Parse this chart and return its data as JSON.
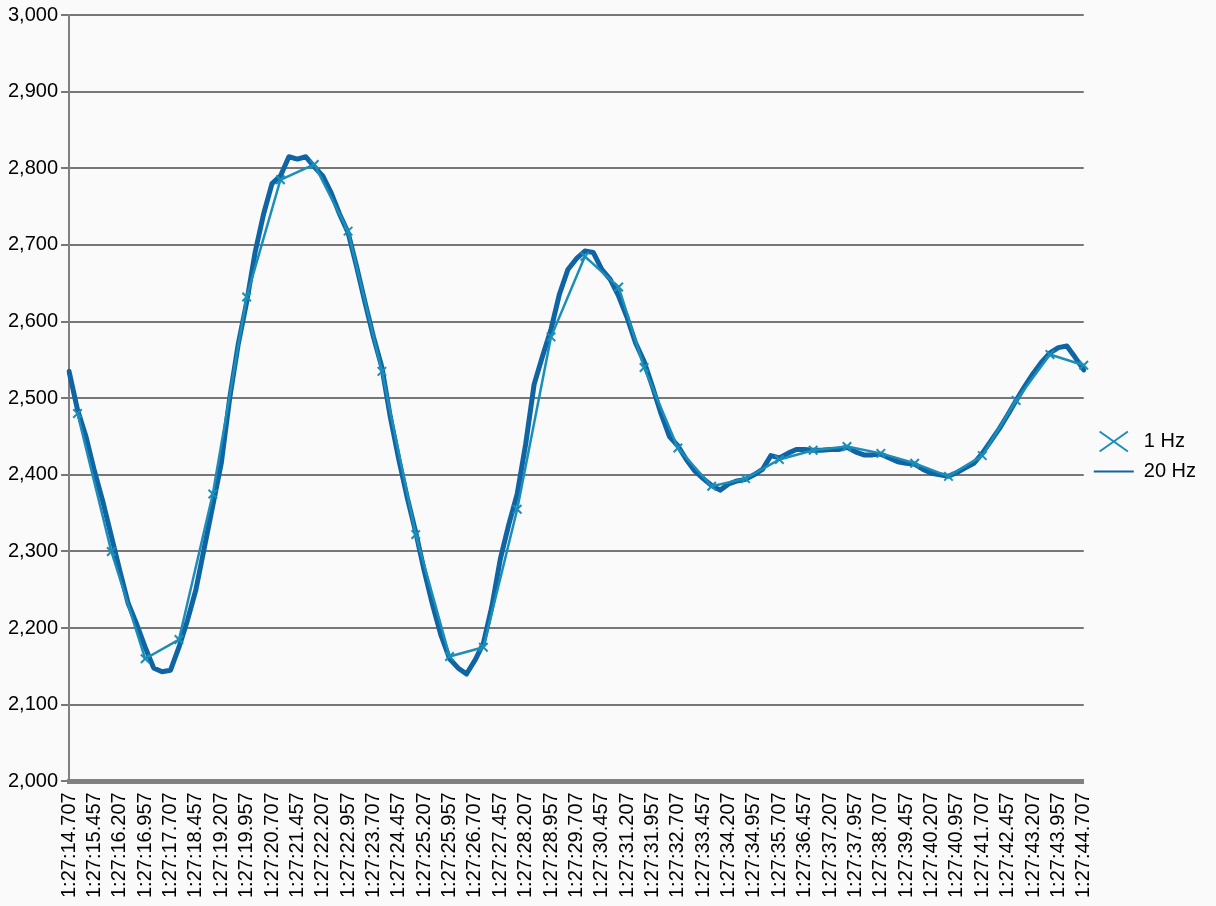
{
  "chart_data": {
    "type": "line",
    "categories": [
      "1:27:14.707",
      null,
      null,
      "1:27:15.457",
      null,
      null,
      "1:27:16.207",
      null,
      null,
      "1:27:16.957",
      null,
      null,
      "1:27:17.707",
      null,
      null,
      "1:27:18.457",
      null,
      null,
      "1:27:19.207",
      null,
      null,
      "1:27:19.957",
      null,
      null,
      "1:27:20.707",
      null,
      null,
      "1:27:21.457",
      null,
      null,
      "1:27:22.207",
      null,
      null,
      "1:27:22.957",
      null,
      null,
      "1:27:23.707",
      null,
      null,
      "1:27:24.457",
      null,
      null,
      "1:27:25.207",
      null,
      null,
      "1:27:25.957",
      null,
      null,
      "1:27:26.707",
      null,
      null,
      "1:27:27.457",
      null,
      null,
      "1:27:28.207",
      null,
      null,
      "1:27:28.957",
      null,
      null,
      "1:27:29.707",
      null,
      null,
      "1:27:30.457",
      null,
      null,
      "1:27:31.207",
      null,
      null,
      "1:27:31.957",
      null,
      null,
      "1:27:32.707",
      null,
      null,
      "1:27:33.457",
      null,
      null,
      "1:27:34.207",
      null,
      null,
      "1:27:34.957",
      null,
      null,
      "1:27:35.707",
      null,
      null,
      "1:27:36.457",
      null,
      null,
      "1:27:37.207",
      null,
      null,
      "1:27:37.957",
      null,
      null,
      "1:27:38.707",
      null,
      null,
      "1:27:39.457",
      null,
      null,
      "1:27:40.207",
      null,
      null,
      "1:27:40.957",
      null,
      null,
      "1:27:41.707",
      null,
      null,
      "1:27:42.457",
      null,
      null,
      "1:27:43.207",
      null,
      null,
      "1:27:43.957",
      null,
      null,
      "1:27:44.707"
    ],
    "ylim": [
      2000,
      3000
    ],
    "yticks": [
      {
        "value": 2000,
        "label": "2,000"
      },
      {
        "value": 2100,
        "label": "2,100"
      },
      {
        "value": 2200,
        "label": "2,200"
      },
      {
        "value": 2300,
        "label": "2,300"
      },
      {
        "value": 2400,
        "label": "2,400"
      },
      {
        "value": 2500,
        "label": "2,500"
      },
      {
        "value": 2600,
        "label": "2,600"
      },
      {
        "value": 2700,
        "label": "2,700"
      },
      {
        "value": 2800,
        "label": "2,800"
      },
      {
        "value": 2900,
        "label": "2,900"
      },
      {
        "value": 3000,
        "label": "3,000"
      }
    ],
    "grid": "y",
    "legend": "right",
    "series": [
      {
        "name": "20 Hz",
        "color": "#0f64a3",
        "marker": "none",
        "values": [
          2535,
          2485,
          2450,
          2405,
          2365,
          2320,
          2275,
          2232,
          2205,
          2175,
          2148,
          2143,
          2145,
          2175,
          2210,
          2250,
          2305,
          2360,
          2415,
          2500,
          2570,
          2625,
          2690,
          2740,
          2780,
          2790,
          2815,
          2812,
          2815,
          2802,
          2790,
          2768,
          2740,
          2716,
          2672,
          2625,
          2580,
          2540,
          2475,
          2420,
          2370,
          2325,
          2275,
          2230,
          2190,
          2160,
          2148,
          2140,
          2158,
          2180,
          2228,
          2290,
          2335,
          2375,
          2440,
          2518,
          2555,
          2590,
          2636,
          2668,
          2682,
          2692,
          2690,
          2668,
          2655,
          2633,
          2605,
          2572,
          2548,
          2515,
          2480,
          2450,
          2438,
          2420,
          2405,
          2395,
          2386,
          2380,
          2388,
          2392,
          2394,
          2400,
          2407,
          2425,
          2422,
          2428,
          2433,
          2433,
          2432,
          2432,
          2433,
          2433,
          2436,
          2430,
          2426,
          2426,
          2427,
          2422,
          2417,
          2415,
          2414,
          2407,
          2402,
          2400,
          2398,
          2403,
          2409,
          2415,
          2428,
          2444,
          2460,
          2478,
          2497,
          2515,
          2532,
          2547,
          2559,
          2566,
          2568,
          2553,
          2537
        ]
      },
      {
        "name": "1 Hz",
        "color": "#1b8db8",
        "marker": "cross",
        "values": [
          null,
          2480,
          null,
          null,
          null,
          2300,
          null,
          null,
          null,
          2160,
          null,
          null,
          null,
          2185,
          null,
          null,
          null,
          2375,
          null,
          null,
          null,
          2632,
          null,
          null,
          null,
          2785,
          null,
          null,
          null,
          2805,
          null,
          null,
          null,
          2718,
          null,
          null,
          null,
          2535,
          null,
          null,
          null,
          2322,
          null,
          null,
          null,
          2163,
          null,
          null,
          null,
          2175,
          null,
          null,
          null,
          2355,
          null,
          null,
          null,
          2580,
          null,
          null,
          null,
          2685,
          null,
          null,
          null,
          2645,
          null,
          null,
          2540,
          null,
          null,
          null,
          2435,
          null,
          null,
          null,
          2385,
          null,
          null,
          null,
          2395,
          null,
          null,
          null,
          2420,
          null,
          null,
          null,
          2432,
          null,
          null,
          null,
          2437,
          null,
          null,
          null,
          2428,
          null,
          null,
          null,
          2415,
          null,
          null,
          null,
          2398,
          null,
          null,
          null,
          2425,
          null,
          null,
          null,
          2497,
          null,
          null,
          null,
          2557,
          null,
          null,
          null,
          2543
        ]
      }
    ]
  }
}
